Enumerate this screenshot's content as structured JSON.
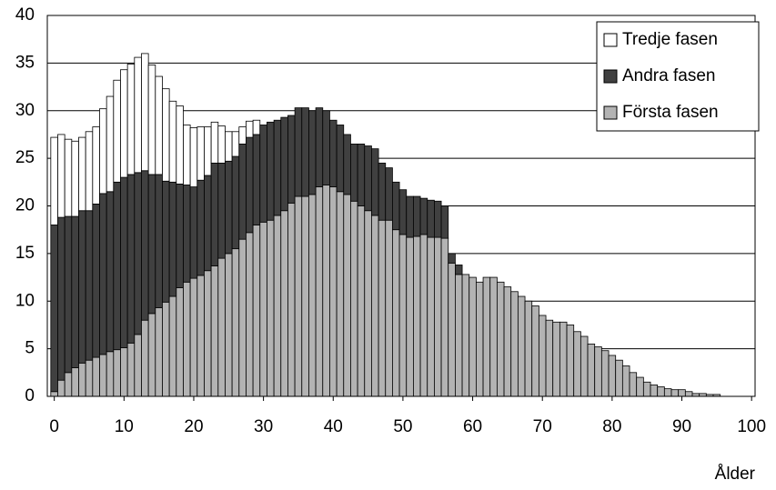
{
  "chart_data": {
    "type": "stacked_bar",
    "x_label": "Ålder",
    "x": [
      0,
      1,
      2,
      3,
      4,
      5,
      6,
      7,
      8,
      9,
      10,
      11,
      12,
      13,
      14,
      15,
      16,
      17,
      18,
      19,
      20,
      21,
      22,
      23,
      24,
      25,
      26,
      27,
      28,
      29,
      30,
      31,
      32,
      33,
      34,
      35,
      36,
      37,
      38,
      39,
      40,
      41,
      42,
      43,
      44,
      45,
      46,
      47,
      48,
      49,
      50,
      51,
      52,
      53,
      54,
      55,
      56,
      57,
      58,
      59,
      60,
      61,
      62,
      63,
      64,
      65,
      66,
      67,
      68,
      69,
      70,
      71,
      72,
      73,
      74,
      75,
      76,
      77,
      78,
      79,
      80,
      81,
      82,
      83,
      84,
      85,
      86,
      87,
      88,
      89,
      90,
      91,
      92,
      93,
      94,
      95
    ],
    "series": [
      {
        "name": "Första fasen",
        "color": "#b3b3b3",
        "values": [
          0.5,
          1.7,
          2.5,
          3.0,
          3.5,
          3.8,
          4.1,
          4.4,
          4.7,
          4.9,
          5.1,
          5.6,
          6.5,
          8.0,
          8.7,
          9.3,
          9.9,
          10.5,
          11.4,
          12.0,
          12.4,
          12.7,
          13.2,
          13.7,
          14.5,
          15.0,
          15.5,
          16.5,
          17.2,
          18.0,
          18.3,
          18.5,
          19.0,
          19.5,
          20.3,
          21.0,
          21.0,
          21.2,
          22.0,
          22.2,
          22.0,
          21.5,
          21.2,
          20.5,
          20.0,
          19.5,
          19.0,
          18.5,
          18.5,
          17.5,
          17.0,
          16.7,
          16.8,
          17.0,
          16.7,
          16.7,
          16.6,
          14.0,
          12.8,
          12.8,
          12.5,
          12.0,
          12.5,
          12.5,
          12.0,
          11.5,
          11.0,
          10.5,
          10.0,
          9.5,
          8.5,
          8.0,
          7.8,
          7.8,
          7.5,
          6.8,
          6.3,
          5.5,
          5.2,
          4.8,
          4.3,
          3.8,
          3.2,
          2.5,
          2.0,
          1.5,
          1.2,
          1.0,
          0.8,
          0.7,
          0.7,
          0.5,
          0.3,
          0.3,
          0.2,
          0.2
        ]
      },
      {
        "name": "Andra fasen",
        "color": "#404040",
        "values": [
          17.5,
          17.1,
          16.4,
          15.9,
          16.0,
          15.7,
          16.1,
          16.9,
          16.8,
          17.6,
          17.9,
          17.7,
          17.0,
          15.7,
          14.6,
          14.0,
          12.7,
          12.0,
          10.9,
          10.2,
          9.6,
          10.0,
          10.0,
          10.8,
          10.0,
          9.7,
          9.7,
          10.0,
          10.0,
          9.5,
          10.2,
          10.3,
          10.0,
          9.8,
          9.2,
          9.3,
          9.3,
          8.8,
          8.3,
          7.8,
          7.0,
          7.0,
          6.3,
          6.0,
          6.5,
          6.8,
          7.0,
          6.0,
          5.5,
          5.0,
          4.7,
          4.3,
          4.2,
          3.8,
          3.9,
          3.8,
          3.4,
          1.0,
          1.0,
          0,
          0,
          0,
          0,
          0,
          0,
          0,
          0,
          0,
          0,
          0,
          0,
          0,
          0,
          0,
          0,
          0,
          0,
          0,
          0,
          0,
          0,
          0,
          0,
          0,
          0,
          0,
          0,
          0,
          0,
          0,
          0,
          0,
          0,
          0,
          0,
          0
        ]
      },
      {
        "name": "Tredje fasen",
        "color": "#ffffff",
        "values": [
          9.2,
          8.7,
          8.1,
          7.9,
          7.7,
          8.3,
          8.1,
          8.9,
          10.0,
          10.7,
          11.3,
          11.6,
          12.1,
          12.3,
          11.5,
          10.3,
          9.7,
          8.5,
          8.2,
          6.3,
          6.2,
          5.6,
          5.1,
          4.3,
          3.9,
          3.1,
          2.6,
          1.8,
          1.7,
          1.5,
          0,
          0,
          0,
          0,
          0,
          0,
          0,
          0,
          0,
          0,
          0,
          0,
          0,
          0,
          0,
          0,
          0,
          0,
          0,
          0,
          0,
          0,
          0,
          0,
          0,
          0,
          0,
          0,
          0,
          0,
          0,
          0,
          0,
          0,
          0,
          0,
          0,
          0,
          0,
          0,
          0,
          0,
          0,
          0,
          0,
          0,
          0,
          0,
          0,
          0,
          0,
          0,
          0,
          0,
          0,
          0,
          0,
          0,
          0,
          0,
          0,
          0,
          0,
          0,
          0,
          0
        ]
      }
    ],
    "xlim": [
      -1,
      100.5
    ],
    "xticks": [
      0,
      10,
      20,
      30,
      40,
      50,
      60,
      70,
      80,
      90,
      100
    ],
    "ylim": [
      0,
      40
    ],
    "yticks": [
      0,
      5,
      10,
      15,
      20,
      25,
      30,
      35,
      40
    ],
    "grid": true,
    "legend": "top-right"
  }
}
